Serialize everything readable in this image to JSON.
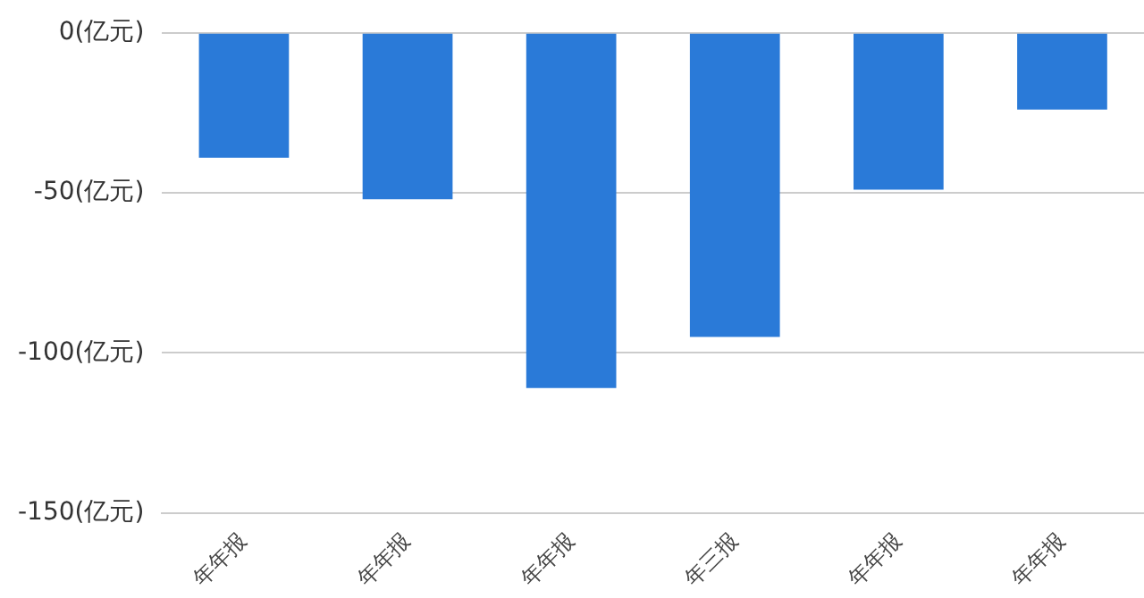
{
  "chart_data": {
    "type": "bar",
    "categories": [
      "年年报",
      "年年报",
      "年年报",
      "年三报",
      "年年报",
      "年年报"
    ],
    "values": [
      -39,
      -52,
      -111,
      -95,
      -49,
      -24
    ],
    "color": "#2a7ad8",
    "ylim": [
      -150,
      0
    ],
    "yticks": [
      {
        "value": -150,
        "label": "-150(亿元)"
      },
      {
        "value": -100,
        "label": "-100(亿元)"
      },
      {
        "value": -50,
        "label": "-50(亿元)"
      },
      {
        "value": 0,
        "label": "0(亿元)"
      }
    ],
    "grid": "y",
    "legend": false
  }
}
